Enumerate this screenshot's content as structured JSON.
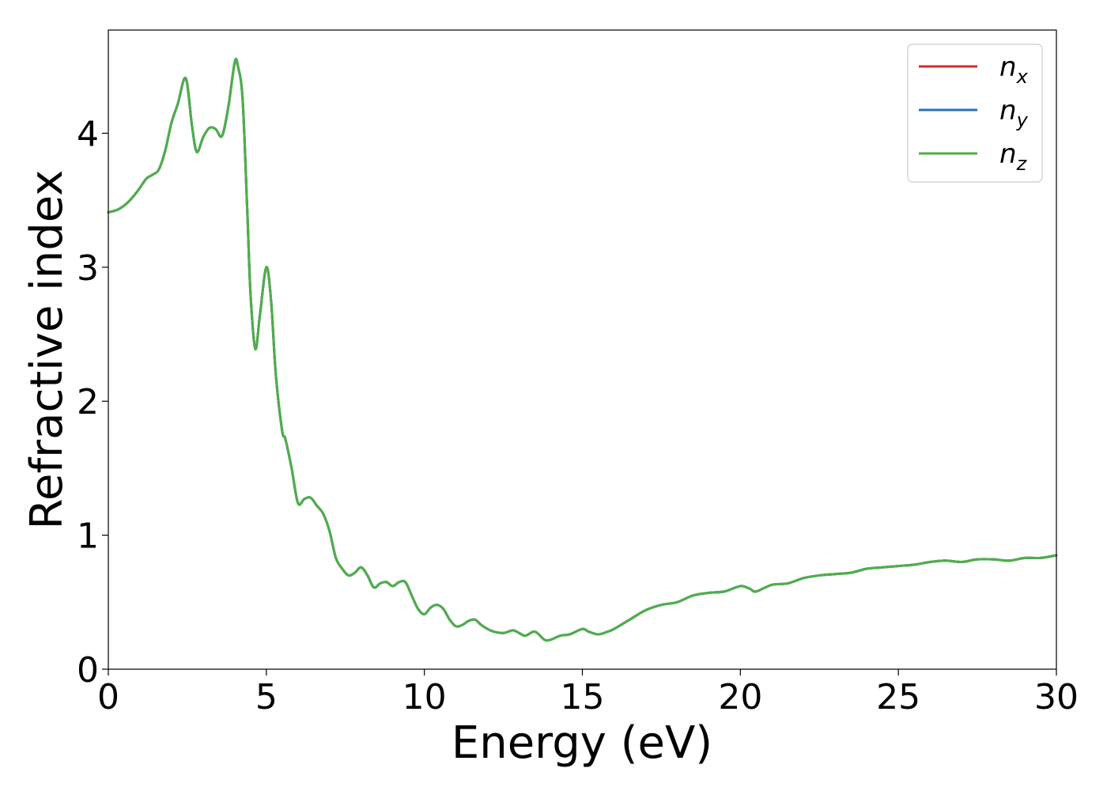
{
  "chart_data": {
    "type": "line",
    "xlabel": "Energy (eV)",
    "ylabel": "Refractive index",
    "xlim": [
      0,
      30
    ],
    "ylim": [
      0,
      4.77
    ],
    "xticks": [
      "0",
      "5",
      "10",
      "15",
      "20",
      "25",
      "30"
    ],
    "yticks": [
      "0",
      "1",
      "2",
      "3",
      "4"
    ],
    "grid": false,
    "legend_position": "top-right",
    "series": [
      {
        "name": "n_x",
        "label_base": "n",
        "label_sub": "x",
        "color": "#d62728"
      },
      {
        "name": "n_y",
        "label_base": "n",
        "label_sub": "y",
        "color": "#1f77b4"
      },
      {
        "name": "n_z",
        "label_base": "n",
        "label_sub": "z",
        "color": "#4daf4a"
      }
    ],
    "x": [
      0,
      0.3,
      0.6,
      0.9,
      1.2,
      1.4,
      1.6,
      1.8,
      2.0,
      2.2,
      2.45,
      2.65,
      2.8,
      3.0,
      3.2,
      3.4,
      3.6,
      3.8,
      4.0,
      4.1,
      4.25,
      4.4,
      4.5,
      4.65,
      4.8,
      5.0,
      5.15,
      5.3,
      5.5,
      5.6,
      5.8,
      6.0,
      6.2,
      6.4,
      6.6,
      6.8,
      7.0,
      7.2,
      7.4,
      7.6,
      7.8,
      8.0,
      8.2,
      8.4,
      8.6,
      8.8,
      9.0,
      9.2,
      9.4,
      9.6,
      9.8,
      10.0,
      10.2,
      10.4,
      10.6,
      10.8,
      11.0,
      11.2,
      11.4,
      11.6,
      11.8,
      12.0,
      12.2,
      12.5,
      12.8,
      13.0,
      13.2,
      13.5,
      13.8,
      14.0,
      14.3,
      14.6,
      15.0,
      15.2,
      15.5,
      15.8,
      16.0,
      16.5,
      17.0,
      17.5,
      18.0,
      18.5,
      19.0,
      19.5,
      20.0,
      20.3,
      20.5,
      21.0,
      21.5,
      22.0,
      22.5,
      23.0,
      23.5,
      24.0,
      24.5,
      25.0,
      25.5,
      26.0,
      26.5,
      27.0,
      27.5,
      28.0,
      28.5,
      29.0,
      29.5,
      30.0
    ],
    "y": [
      3.41,
      3.43,
      3.48,
      3.56,
      3.66,
      3.69,
      3.73,
      3.87,
      4.08,
      4.22,
      4.41,
      4.05,
      3.86,
      3.97,
      4.04,
      4.03,
      3.98,
      4.2,
      4.53,
      4.5,
      4.25,
      3.4,
      2.8,
      2.39,
      2.65,
      3.0,
      2.75,
      2.2,
      1.78,
      1.72,
      1.5,
      1.24,
      1.27,
      1.28,
      1.22,
      1.16,
      1.03,
      0.83,
      0.75,
      0.7,
      0.72,
      0.76,
      0.7,
      0.61,
      0.64,
      0.65,
      0.62,
      0.65,
      0.65,
      0.55,
      0.45,
      0.41,
      0.46,
      0.48,
      0.45,
      0.37,
      0.32,
      0.33,
      0.36,
      0.37,
      0.33,
      0.3,
      0.28,
      0.27,
      0.29,
      0.27,
      0.25,
      0.28,
      0.22,
      0.22,
      0.25,
      0.26,
      0.3,
      0.28,
      0.26,
      0.28,
      0.3,
      0.37,
      0.44,
      0.48,
      0.5,
      0.55,
      0.57,
      0.58,
      0.62,
      0.6,
      0.58,
      0.63,
      0.64,
      0.68,
      0.7,
      0.71,
      0.72,
      0.75,
      0.76,
      0.77,
      0.78,
      0.8,
      0.81,
      0.8,
      0.82,
      0.82,
      0.81,
      0.83,
      0.83,
      0.85
    ]
  }
}
